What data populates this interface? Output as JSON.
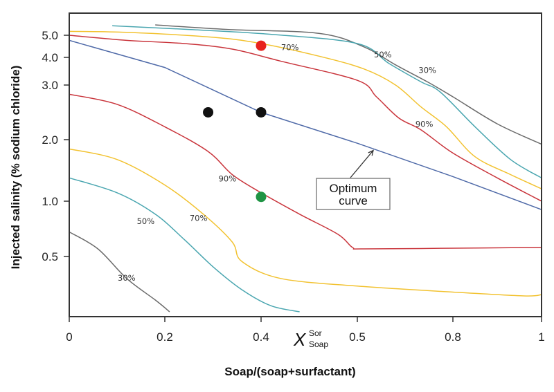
{
  "chart_data": {
    "type": "line",
    "xlabel": "Soap/(soap+surfactant)",
    "ylabel": "Injected salinity (% sodium chloride)",
    "x_ticks": [
      "0",
      "0.2",
      "0.4",
      "0.5",
      "0.8",
      "1"
    ],
    "x_tick_values": [
      0,
      0.2,
      0.4,
      0.5,
      0.8,
      1
    ],
    "y_ticks": [
      "5.0",
      "4.0",
      "3.0",
      "2.0",
      "1.0",
      "0.5"
    ],
    "y_tick_values": [
      5.0,
      4.0,
      3.0,
      2.0,
      1.0,
      0.5
    ],
    "x_marker_label": {
      "base": "X",
      "sup": "Sor",
      "sub": "Soap"
    },
    "ylim": [
      0.25,
      6.8
    ],
    "xlim": [
      0,
      1
    ],
    "grid": false,
    "series": [
      {
        "name": "30% upper",
        "label": "30%",
        "color": "#6b6b6b",
        "points": [
          [
            0.18,
            5.55
          ],
          [
            0.33,
            5.3
          ],
          [
            0.46,
            5.1
          ],
          [
            0.52,
            4.45
          ],
          [
            0.62,
            3.7
          ],
          [
            0.72,
            3.1
          ],
          [
            0.8,
            2.75
          ],
          [
            0.9,
            2.25
          ],
          [
            1.0,
            1.9
          ]
        ]
      },
      {
        "name": "50% upper",
        "label": "50%",
        "color": "#4aa6b0",
        "points": [
          [
            0.09,
            5.5
          ],
          [
            0.25,
            5.3
          ],
          [
            0.41,
            5.05
          ],
          [
            0.5,
            4.6
          ],
          [
            0.6,
            3.75
          ],
          [
            0.7,
            3.1
          ],
          [
            0.76,
            2.85
          ],
          [
            0.85,
            2.2
          ],
          [
            0.93,
            1.6
          ],
          [
            1.0,
            1.3
          ]
        ]
      },
      {
        "name": "70% upper",
        "label": "70%",
        "color": "#f2c230",
        "points": [
          [
            0,
            5.2
          ],
          [
            0.12,
            5.15
          ],
          [
            0.3,
            4.9
          ],
          [
            0.4,
            4.6
          ],
          [
            0.46,
            4.05
          ],
          [
            0.52,
            3.55
          ],
          [
            0.62,
            3.0
          ],
          [
            0.7,
            2.55
          ],
          [
            0.78,
            2.2
          ],
          [
            0.85,
            1.65
          ],
          [
            0.93,
            1.35
          ],
          [
            1.0,
            1.15
          ]
        ]
      },
      {
        "name": "90% upper",
        "label": "90%",
        "color": "#c9343b",
        "points": [
          [
            0,
            5.0
          ],
          [
            0.12,
            4.75
          ],
          [
            0.24,
            4.6
          ],
          [
            0.34,
            4.35
          ],
          [
            0.42,
            3.85
          ],
          [
            0.5,
            3.15
          ],
          [
            0.56,
            2.75
          ],
          [
            0.63,
            2.35
          ],
          [
            0.7,
            2.15
          ],
          [
            0.8,
            1.72
          ],
          [
            0.9,
            1.3
          ],
          [
            1.0,
            1.0
          ]
        ]
      },
      {
        "name": "Optimum curve",
        "label": "Optimum curve",
        "color": "#4f6aa8",
        "points": [
          [
            0,
            4.75
          ],
          [
            0.2,
            3.6
          ],
          [
            0.4,
            2.45
          ],
          [
            0.5,
            1.92
          ],
          [
            0.8,
            1.32
          ],
          [
            1.0,
            0.9
          ]
        ]
      },
      {
        "name": "90% lower",
        "label": "90%",
        "color": "#c9343b",
        "points": [
          [
            0,
            2.8
          ],
          [
            0.1,
            2.6
          ],
          [
            0.2,
            2.2
          ],
          [
            0.29,
            1.75
          ],
          [
            0.34,
            1.35
          ],
          [
            0.4,
            1.1
          ],
          [
            0.44,
            0.85
          ],
          [
            0.48,
            0.66
          ],
          [
            0.495,
            0.56
          ],
          [
            0.52,
            0.55
          ],
          [
            0.8,
            0.555
          ],
          [
            1.0,
            0.56
          ]
        ]
      },
      {
        "name": "70% lower",
        "label": "70%",
        "color": "#f2c230",
        "points": [
          [
            0,
            1.8
          ],
          [
            0.1,
            1.6
          ],
          [
            0.2,
            1.2
          ],
          [
            0.28,
            0.85
          ],
          [
            0.34,
            0.6
          ],
          [
            0.36,
            0.47
          ],
          [
            0.42,
            0.38
          ],
          [
            0.5,
            0.345
          ],
          [
            0.8,
            0.32
          ],
          [
            0.96,
            0.305
          ],
          [
            1.0,
            0.31
          ]
        ]
      },
      {
        "name": "50% lower",
        "label": "50%",
        "color": "#4aa6b0",
        "points": [
          [
            0,
            1.3
          ],
          [
            0.1,
            1.1
          ],
          [
            0.18,
            0.85
          ],
          [
            0.24,
            0.62
          ],
          [
            0.3,
            0.44
          ],
          [
            0.36,
            0.33
          ],
          [
            0.41,
            0.27
          ],
          [
            0.44,
            0.25
          ]
        ]
      },
      {
        "name": "30% lower",
        "label": "30%",
        "color": "#6b6b6b",
        "points": [
          [
            0,
            0.68
          ],
          [
            0.06,
            0.55
          ],
          [
            0.12,
            0.38
          ],
          [
            0.18,
            0.29
          ],
          [
            0.21,
            0.25
          ]
        ]
      }
    ],
    "markers": [
      {
        "name": "red point",
        "x": 0.4,
        "y": 4.5,
        "color": "#e8221d"
      },
      {
        "name": "black point 1",
        "x": 0.29,
        "y": 2.45,
        "color": "#111111"
      },
      {
        "name": "black point 2",
        "x": 0.4,
        "y": 2.45,
        "color": "#111111"
      },
      {
        "name": "green point",
        "x": 0.4,
        "y": 1.05,
        "color": "#1f9444"
      }
    ],
    "curve_labels": [
      {
        "text": "70%",
        "x": 0.43,
        "y": 4.3
      },
      {
        "text": "50%",
        "x": 0.58,
        "y": 4.0
      },
      {
        "text": "30%",
        "x": 0.72,
        "y": 3.4
      },
      {
        "text": "90%",
        "x": 0.71,
        "y": 2.2
      },
      {
        "text": "90%",
        "x": 0.33,
        "y": 1.25
      },
      {
        "text": "70%",
        "x": 0.27,
        "y": 0.78
      },
      {
        "text": "50%",
        "x": 0.16,
        "y": 0.75
      },
      {
        "text": "30%",
        "x": 0.12,
        "y": 0.37
      }
    ],
    "annotation": {
      "line1": "Optimum",
      "line2": "curve",
      "target_x": 0.55,
      "target_y": 1.8
    }
  }
}
